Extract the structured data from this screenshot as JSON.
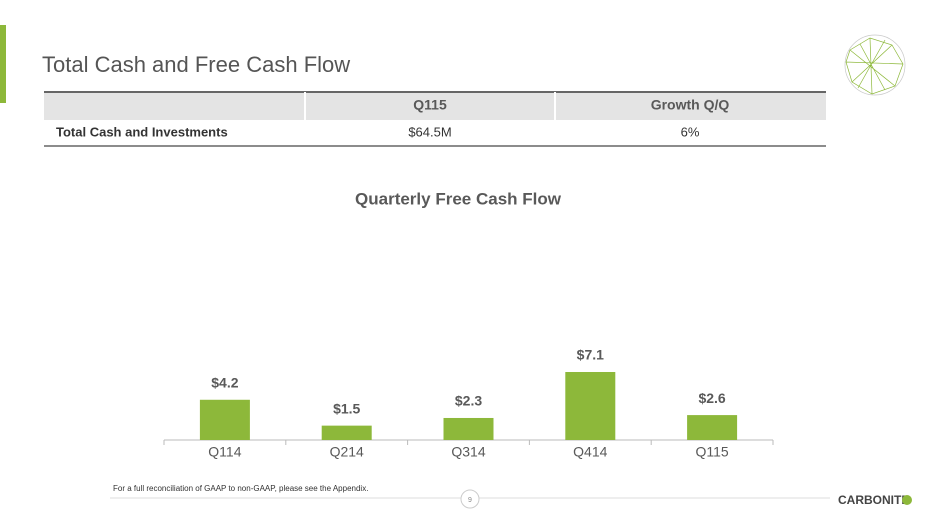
{
  "header": {
    "title": "Total Cash and Free Cash Flow"
  },
  "table": {
    "columns": [
      "",
      "Q115",
      "Growth Q/Q"
    ],
    "rows": [
      [
        "Total Cash and Investments",
        "$64.5M",
        "6%"
      ]
    ]
  },
  "chart_data": {
    "type": "bar",
    "title": "Quarterly Free Cash Flow",
    "categories": [
      "Q114",
      "Q214",
      "Q314",
      "Q414",
      "Q115"
    ],
    "values": [
      4.2,
      1.5,
      2.3,
      7.1,
      2.6
    ],
    "value_labels": [
      "$4.2",
      "$1.5",
      "$2.3",
      "$7.1",
      "$2.6"
    ],
    "color": "#8db83a"
  },
  "footer": {
    "note": "For a full reconciliation of GAAP to non-GAAP, please see the Appendix.",
    "page": "9",
    "logo": "CARBONITE"
  }
}
